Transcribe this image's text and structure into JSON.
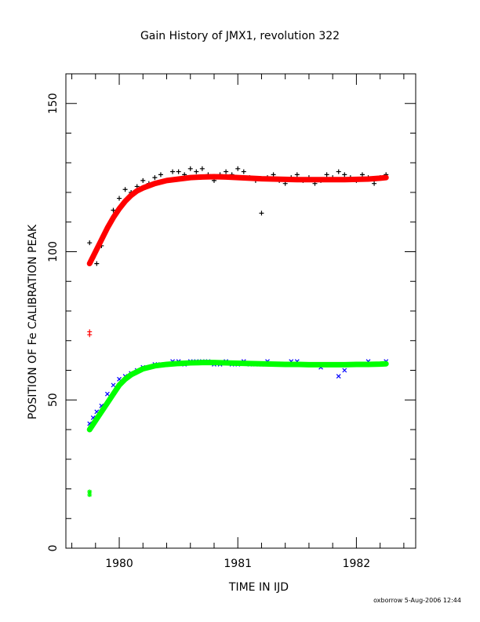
{
  "chart_data": {
    "type": "scatter",
    "title": "Gain History of JMX1, revolution 322",
    "xlabel": "TIME IN IJD",
    "ylabel": "POSITION OF Fe CALIBRATION PEAK",
    "xlim": [
      1979.55,
      1982.5
    ],
    "ylim": [
      0,
      160
    ],
    "xticks": [
      1980,
      1981,
      1982
    ],
    "yticks": [
      0,
      50,
      100,
      150
    ],
    "grid": false,
    "colors": {
      "upper_points": "#000000",
      "upper_fit": "#ff0000",
      "lower_points": "#0000ff",
      "lower_fit": "#00ff00"
    },
    "series": [
      {
        "marker": "+",
        "color": "#000000",
        "x": [
          1979.75,
          1979.78,
          1979.81,
          1979.85,
          1979.9,
          1979.95,
          1980.0,
          1980.05,
          1980.1,
          1980.15,
          1980.2,
          1980.25,
          1980.3,
          1980.35,
          1980.4,
          1980.45,
          1980.5,
          1980.55,
          1980.6,
          1980.65,
          1980.7,
          1980.75,
          1980.8,
          1980.85,
          1980.9,
          1980.95,
          1981.0,
          1981.05,
          1981.1,
          1981.15,
          1981.2,
          1981.25,
          1981.3,
          1981.35,
          1981.4,
          1981.45,
          1981.5,
          1981.55,
          1981.6,
          1981.65,
          1981.7,
          1981.75,
          1981.8,
          1981.85,
          1981.9,
          1981.95,
          1982.0,
          1982.05,
          1982.1,
          1982.15,
          1982.2,
          1982.25
        ],
        "y": [
          103,
          98,
          96,
          102,
          108,
          114,
          118,
          121,
          120,
          122,
          124,
          123,
          125,
          126,
          124,
          127,
          127,
          126,
          128,
          127,
          128,
          126,
          124,
          126,
          127,
          126,
          128,
          127,
          125,
          124,
          113,
          125,
          126,
          124,
          123,
          125,
          126,
          124,
          125,
          123,
          124,
          126,
          125,
          127,
          126,
          125,
          124,
          126,
          125,
          123,
          125,
          126
        ]
      },
      {
        "marker": "x",
        "color": "#0000ff",
        "x": [
          1979.75,
          1979.78,
          1979.81,
          1979.85,
          1979.9,
          1979.95,
          1980.0,
          1980.05,
          1980.1,
          1980.15,
          1980.2,
          1980.25,
          1980.3,
          1980.35,
          1980.4,
          1980.45,
          1980.5,
          1980.55,
          1980.6,
          1980.65,
          1980.7,
          1980.75,
          1980.8,
          1980.85,
          1980.9,
          1980.95,
          1981.0,
          1981.05,
          1981.1,
          1981.15,
          1981.2,
          1981.25,
          1981.3,
          1981.35,
          1981.4,
          1981.45,
          1981.5,
          1981.55,
          1981.6,
          1981.65,
          1981.7,
          1981.75,
          1981.8,
          1981.85,
          1981.9,
          1981.95,
          1982.0,
          1982.05,
          1982.1,
          1982.15,
          1982.2,
          1982.25
        ],
        "y": [
          42,
          44,
          46,
          48,
          52,
          55,
          57,
          58,
          59,
          60,
          61,
          61,
          62,
          62,
          62,
          63,
          63,
          62,
          63,
          63,
          63,
          63,
          62,
          62,
          63,
          62,
          62,
          63,
          62,
          62,
          62,
          63,
          62,
          62,
          62,
          63,
          63,
          62,
          62,
          62,
          61,
          62,
          62,
          58,
          60,
          62,
          62,
          62,
          63,
          62,
          62,
          63
        ]
      },
      {
        "marker": "fit",
        "color": "#ff0000",
        "x": [
          1979.75,
          1979.8,
          1979.85,
          1979.9,
          1979.95,
          1980.0,
          1980.05,
          1980.1,
          1980.15,
          1980.2,
          1980.3,
          1980.4,
          1980.5,
          1980.6,
          1980.7,
          1980.8,
          1980.9,
          1981.0,
          1981.1,
          1981.2,
          1981.3,
          1981.4,
          1981.5,
          1981.6,
          1981.7,
          1981.8,
          1981.9,
          1982.0,
          1982.1,
          1982.2,
          1982.25
        ],
        "y": [
          96,
          100,
          104,
          108,
          111.5,
          114.5,
          117,
          119,
          120.5,
          121.5,
          123,
          124,
          124.5,
          125,
          125.2,
          125.3,
          125.2,
          125,
          124.8,
          124.6,
          124.5,
          124.4,
          124.3,
          124.3,
          124.3,
          124.3,
          124.3,
          124.4,
          124.5,
          124.8,
          125
        ]
      },
      {
        "marker": "fit",
        "color": "#00ff00",
        "x": [
          1979.75,
          1979.8,
          1979.85,
          1979.9,
          1979.95,
          1980.0,
          1980.05,
          1980.1,
          1980.15,
          1980.2,
          1980.3,
          1980.4,
          1980.5,
          1980.6,
          1980.7,
          1980.8,
          1980.9,
          1981.0,
          1981.1,
          1981.2,
          1981.3,
          1981.4,
          1981.5,
          1981.6,
          1981.7,
          1981.8,
          1981.9,
          1982.0,
          1982.1,
          1982.2,
          1982.25
        ],
        "y": [
          40,
          43,
          46,
          49,
          52,
          55,
          57,
          58.5,
          59.5,
          60.5,
          61.5,
          62,
          62.3,
          62.5,
          62.6,
          62.6,
          62.5,
          62.4,
          62.3,
          62.2,
          62.1,
          62,
          62,
          61.9,
          61.9,
          61.9,
          61.9,
          62,
          62,
          62.1,
          62.2
        ]
      },
      {
        "marker": "+",
        "color": "#ff0000",
        "x": [
          1979.75,
          1979.75
        ],
        "y": [
          72,
          73
        ]
      },
      {
        "marker": "*",
        "color": "#00ff00",
        "x": [
          1979.75,
          1979.75
        ],
        "y": [
          18,
          19
        ]
      }
    ]
  },
  "footer": "oxborrow   5-Aug-2006 12:44"
}
